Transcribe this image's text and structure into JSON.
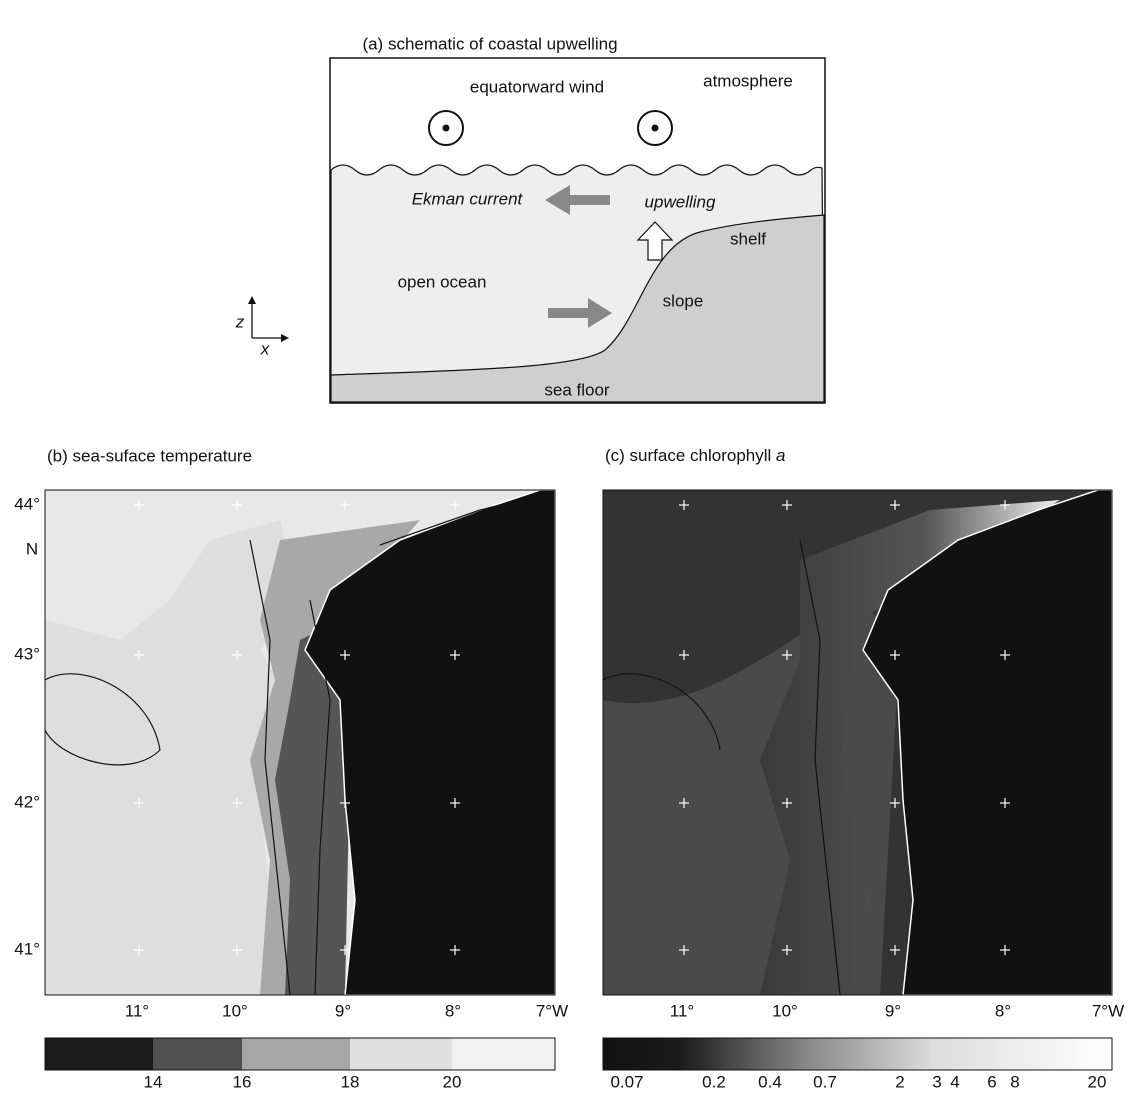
{
  "panel_a": {
    "title": "(a) schematic of coastal upwelling",
    "labels": {
      "wind": "equatorward wind",
      "atmosphere": "atmosphere",
      "ekman": "Ekman current",
      "upwelling": "upwelling",
      "shelf": "shelf",
      "open_ocean": "open ocean",
      "slope": "slope",
      "sea_floor": "sea floor",
      "z": "z",
      "x": "x"
    }
  },
  "panel_b": {
    "title": "(b) sea-suface temperature",
    "lat_labels": [
      "44°",
      "43°",
      "42°",
      "41°"
    ],
    "lat_unit": "N",
    "lon_labels": [
      "11°",
      "10°",
      "9°",
      "8°",
      "7°W"
    ],
    "colorbar_labels": [
      "14",
      "16",
      "18",
      "20"
    ]
  },
  "panel_c": {
    "title": "(c) surface chlorophyll",
    "title_italic": "a",
    "lon_labels": [
      "11°",
      "10°",
      "9°",
      "8°",
      "7°W"
    ],
    "colorbar_labels": [
      "0.07",
      "0.2",
      "0.4",
      "0.7",
      "2",
      "3",
      "4",
      "6",
      "8",
      "20"
    ]
  }
}
